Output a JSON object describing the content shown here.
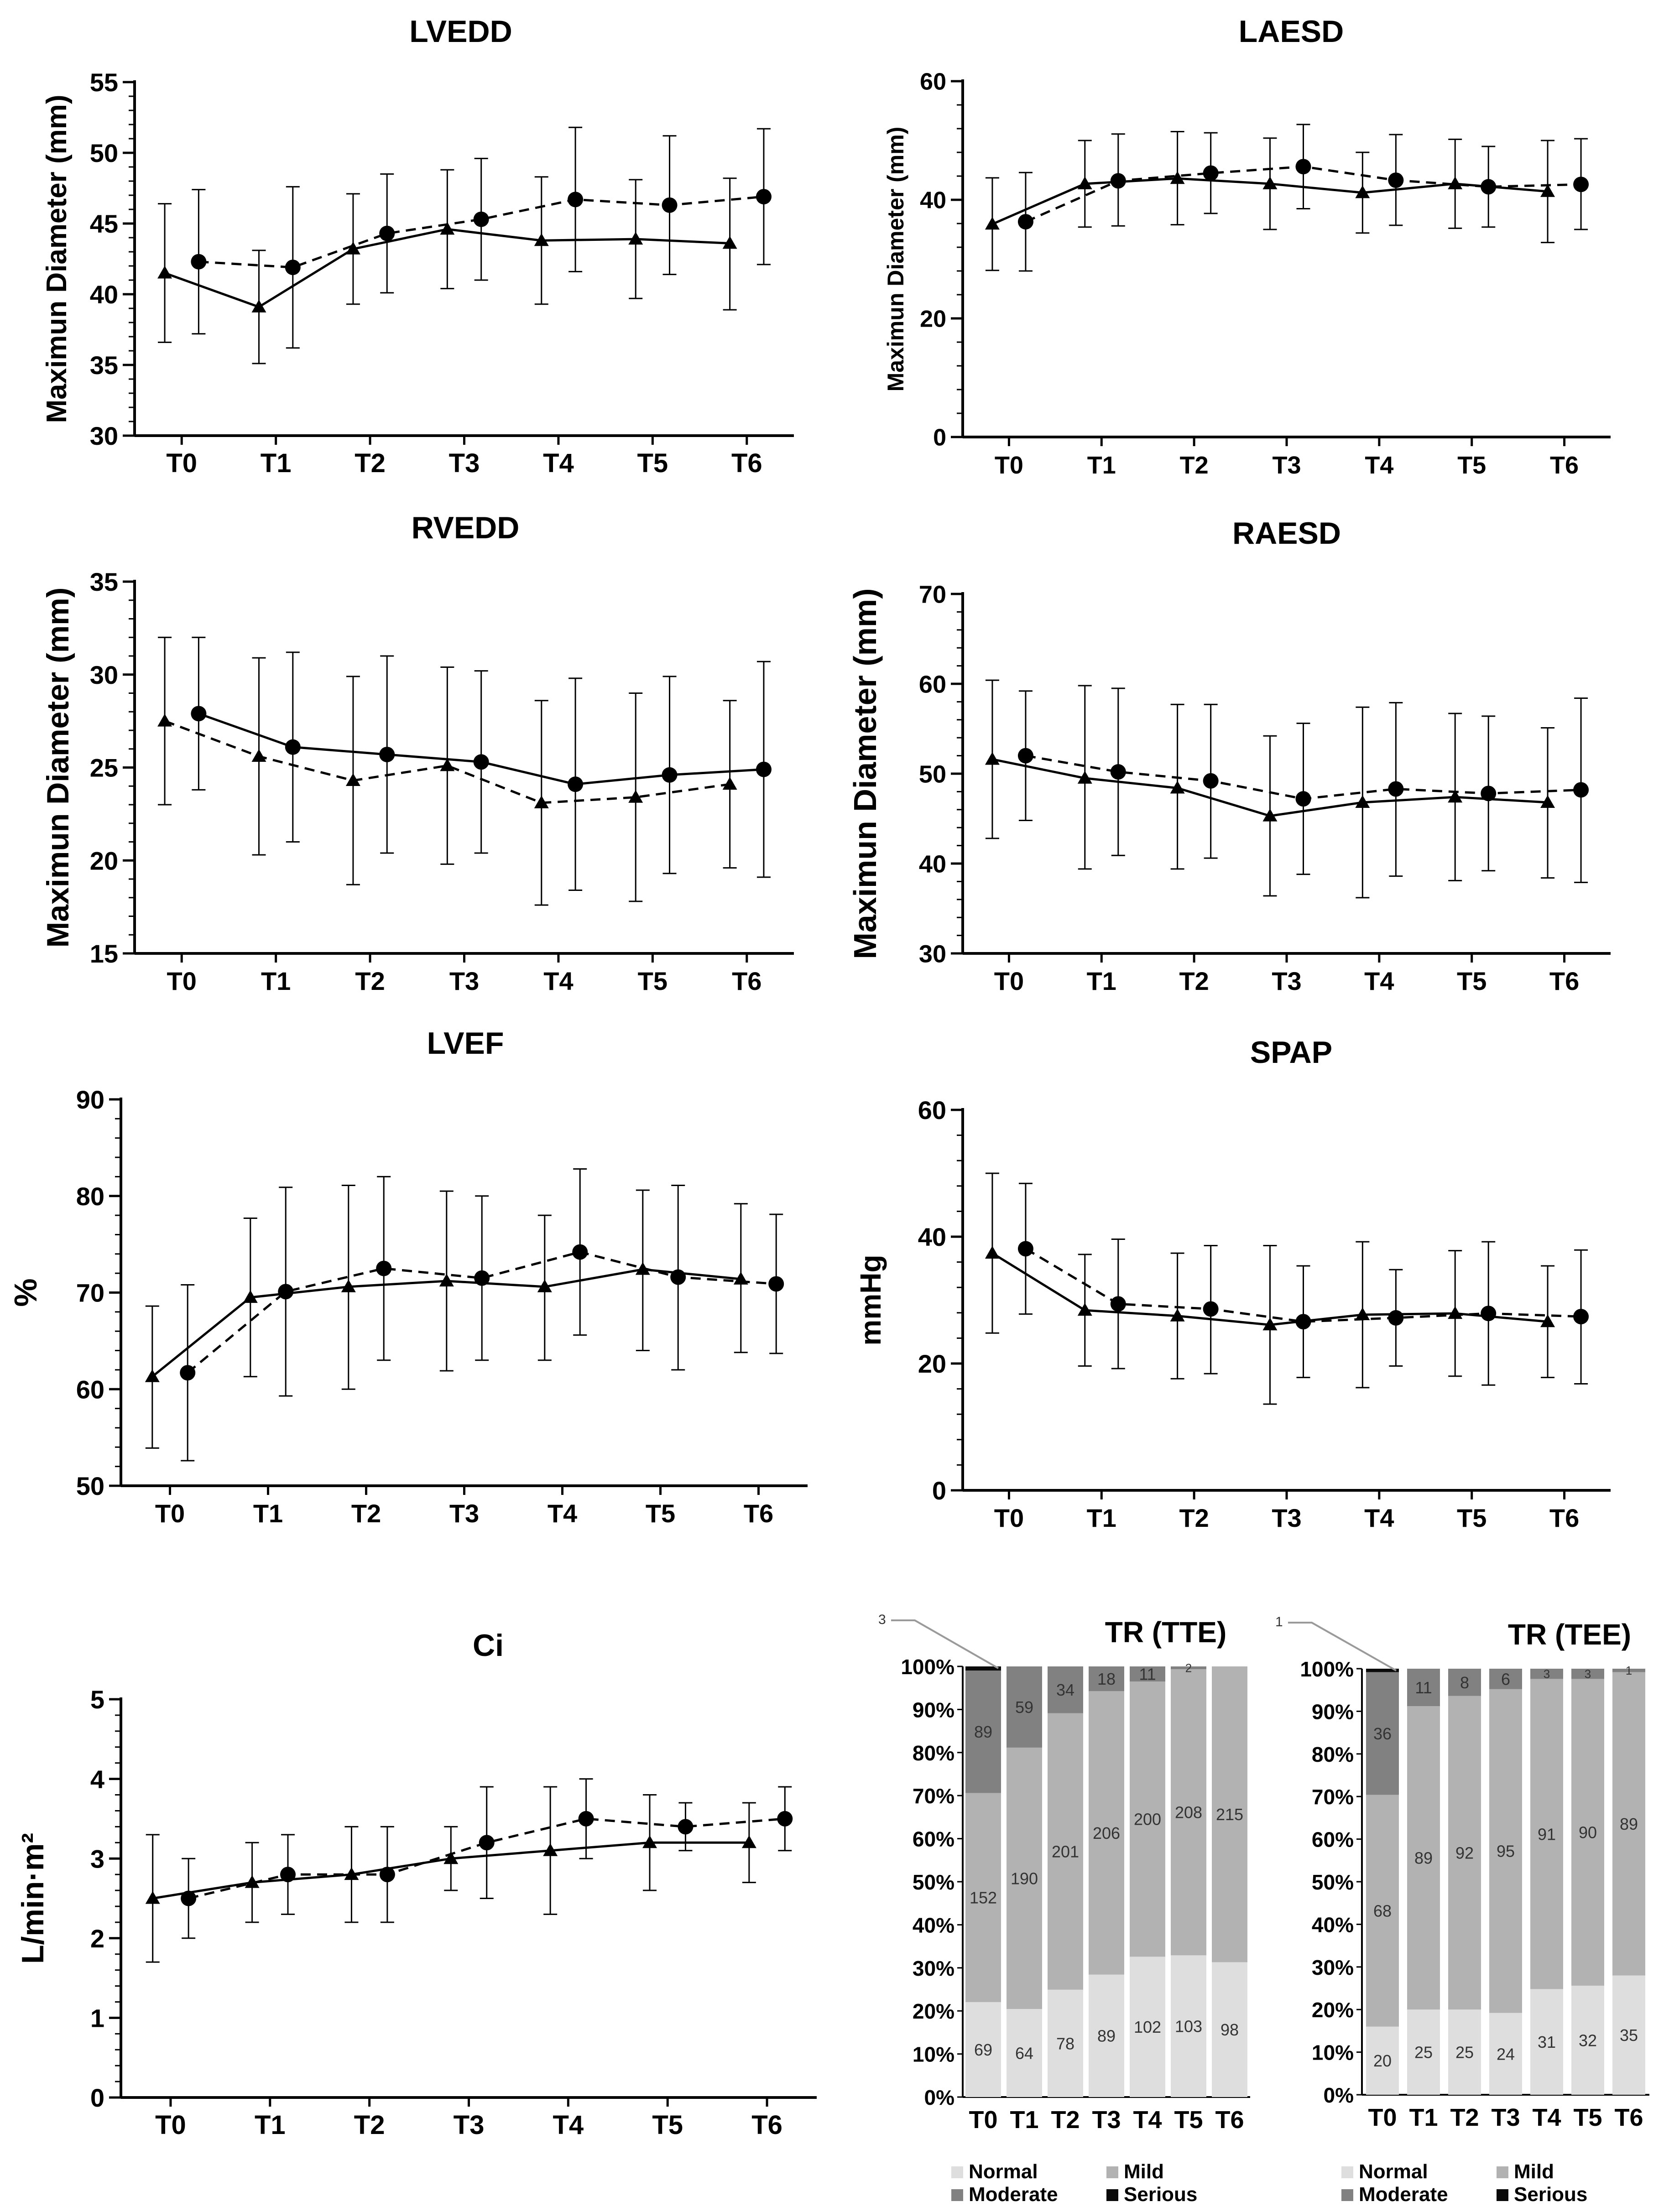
{
  "chart_data": [
    {
      "type": "line",
      "title": "LVEDD",
      "ylabel": "Maximun Diameter (mm)",
      "ylim": [
        30,
        55
      ],
      "yticks": [
        30,
        35,
        40,
        45,
        50,
        55
      ],
      "categories": [
        "T0",
        "T1",
        "T2",
        "T3",
        "T4",
        "T5",
        "T6"
      ],
      "series": [
        {
          "name": "triangle-solid",
          "marker": "triangle",
          "dash": "solid",
          "values": [
            41.5,
            39.1,
            43.2,
            44.6,
            43.8,
            43.9,
            43.6
          ],
          "err": [
            [
              36.6,
              46.4
            ],
            [
              35.1,
              43.1
            ],
            [
              39.3,
              47.1
            ],
            [
              40.4,
              48.8
            ],
            [
              39.3,
              48.3
            ],
            [
              39.7,
              48.1
            ],
            [
              38.9,
              48.2
            ]
          ]
        },
        {
          "name": "circle-dashed",
          "marker": "circle",
          "dash": "dashed",
          "values": [
            42.3,
            41.9,
            44.3,
            45.3,
            46.7,
            46.3,
            46.9
          ],
          "err": [
            [
              37.2,
              47.4
            ],
            [
              36.2,
              47.6
            ],
            [
              40.1,
              48.5
            ],
            [
              41.0,
              49.6
            ],
            [
              41.6,
              51.8
            ],
            [
              41.4,
              51.2
            ],
            [
              42.1,
              51.7
            ]
          ]
        }
      ]
    },
    {
      "type": "line",
      "title": "LAESD",
      "ylabel": "Maximun Diameter (mm)",
      "ylim": [
        0,
        60
      ],
      "yticks": [
        0,
        20,
        40,
        60
      ],
      "categories": [
        "T0",
        "T1",
        "T2",
        "T3",
        "T4",
        "T5",
        "T6"
      ],
      "series": [
        {
          "name": "triangle-solid",
          "marker": "triangle",
          "dash": "solid",
          "values": [
            35.9,
            42.7,
            43.6,
            42.7,
            41.2,
            42.7,
            41.4
          ],
          "err": [
            [
              28.1,
              43.7
            ],
            [
              35.4,
              50.0
            ],
            [
              35.8,
              51.5
            ],
            [
              35.0,
              50.4
            ],
            [
              34.4,
              48.0
            ],
            [
              35.2,
              50.2
            ],
            [
              32.8,
              50.0
            ]
          ]
        },
        {
          "name": "circle-dashed",
          "marker": "circle",
          "dash": "dashed",
          "values": [
            36.3,
            43.2,
            44.5,
            45.6,
            43.3,
            42.2,
            42.6
          ],
          "err": [
            [
              28.0,
              44.6
            ],
            [
              35.6,
              51.1
            ],
            [
              37.7,
              51.3
            ],
            [
              38.5,
              52.7
            ],
            [
              35.7,
              51.0
            ],
            [
              35.4,
              49.0
            ],
            [
              35.0,
              50.3
            ]
          ]
        }
      ]
    },
    {
      "type": "line",
      "title": "RVEDD",
      "ylabel": "Maximun Diameter (mm)",
      "ylim": [
        15,
        35
      ],
      "yticks": [
        15,
        20,
        25,
        30,
        35
      ],
      "categories": [
        "T0",
        "T1",
        "T2",
        "T3",
        "T4",
        "T5",
        "T6"
      ],
      "series": [
        {
          "name": "triangle-dashed",
          "marker": "triangle",
          "dash": "dashed",
          "values": [
            27.5,
            25.6,
            24.3,
            25.1,
            23.1,
            23.4,
            24.1
          ],
          "err": [
            [
              23.0,
              32.0
            ],
            [
              20.3,
              30.9
            ],
            [
              18.7,
              29.9
            ],
            [
              19.8,
              30.4
            ],
            [
              17.6,
              28.6
            ],
            [
              17.8,
              29.0
            ],
            [
              19.6,
              28.6
            ]
          ]
        },
        {
          "name": "circle-solid",
          "marker": "circle",
          "dash": "solid",
          "values": [
            27.9,
            26.1,
            25.7,
            25.3,
            24.1,
            24.6,
            24.9
          ],
          "err": [
            [
              23.8,
              32.0
            ],
            [
              21.0,
              31.2
            ],
            [
              20.4,
              31.0
            ],
            [
              20.4,
              30.2
            ],
            [
              18.4,
              29.8
            ],
            [
              19.3,
              29.9
            ],
            [
              19.1,
              30.7
            ]
          ]
        }
      ]
    },
    {
      "type": "line",
      "title": "RAESD",
      "ylabel": "Maximun Diameter (mm)",
      "ylim": [
        30,
        70
      ],
      "yticks": [
        30,
        40,
        50,
        60,
        70
      ],
      "categories": [
        "T0",
        "T1",
        "T2",
        "T3",
        "T4",
        "T5",
        "T6"
      ],
      "series": [
        {
          "name": "triangle-solid",
          "marker": "triangle",
          "dash": "solid",
          "values": [
            51.6,
            49.5,
            48.4,
            45.3,
            46.8,
            47.4,
            46.8
          ],
          "err": [
            [
              42.8,
              60.4
            ],
            [
              39.4,
              59.8
            ],
            [
              39.4,
              57.7
            ],
            [
              36.4,
              54.2
            ],
            [
              36.2,
              57.4
            ],
            [
              38.1,
              56.7
            ],
            [
              38.4,
              55.1
            ]
          ]
        },
        {
          "name": "circle-dashed",
          "marker": "circle",
          "dash": "dashed",
          "values": [
            52.0,
            50.2,
            49.2,
            47.2,
            48.3,
            47.8,
            48.2
          ],
          "err": [
            [
              44.8,
              59.2
            ],
            [
              40.9,
              59.5
            ],
            [
              40.6,
              57.7
            ],
            [
              38.8,
              55.6
            ],
            [
              38.6,
              57.9
            ],
            [
              39.2,
              56.4
            ],
            [
              37.9,
              58.4
            ]
          ]
        }
      ]
    },
    {
      "type": "line",
      "title": "LVEF",
      "ylabel": "%",
      "ylim": [
        50,
        90
      ],
      "yticks": [
        50,
        60,
        70,
        80,
        90
      ],
      "categories": [
        "T0",
        "T1",
        "T2",
        "T3",
        "T4",
        "T5",
        "T6"
      ],
      "series": [
        {
          "name": "triangle-solid",
          "marker": "triangle",
          "dash": "solid",
          "values": [
            61.3,
            69.5,
            70.6,
            71.2,
            70.6,
            72.4,
            71.4
          ],
          "err": [
            [
              53.9,
              68.6
            ],
            [
              61.3,
              77.7
            ],
            [
              60.0,
              81.1
            ],
            [
              61.9,
              80.5
            ],
            [
              63.0,
              78.0
            ],
            [
              64.0,
              80.6
            ],
            [
              63.8,
              79.2
            ]
          ]
        },
        {
          "name": "circle-dashed",
          "marker": "circle",
          "dash": "dashed",
          "values": [
            61.7,
            70.1,
            72.5,
            71.5,
            74.2,
            71.6,
            70.9
          ],
          "err": [
            [
              52.6,
              70.8
            ],
            [
              59.3,
              80.9
            ],
            [
              63.0,
              82.0
            ],
            [
              63.0,
              80.0
            ],
            [
              65.6,
              82.8
            ],
            [
              62.0,
              81.1
            ],
            [
              63.7,
              78.1
            ]
          ]
        }
      ]
    },
    {
      "type": "line",
      "title": "SPAP",
      "ylabel": "mmHg",
      "ylim": [
        0,
        60
      ],
      "yticks": [
        0,
        20,
        40,
        60
      ],
      "categories": [
        "T0",
        "T1",
        "T2",
        "T3",
        "T4",
        "T5",
        "T6"
      ],
      "series": [
        {
          "name": "triangle-solid",
          "marker": "triangle",
          "dash": "solid",
          "values": [
            37.4,
            28.4,
            27.5,
            26.1,
            27.7,
            27.9,
            26.6
          ],
          "err": [
            [
              24.8,
              50.0
            ],
            [
              19.6,
              37.2
            ],
            [
              17.6,
              37.4
            ],
            [
              13.6,
              38.6
            ],
            [
              16.2,
              39.2
            ],
            [
              18.0,
              37.8
            ],
            [
              17.8,
              35.4
            ]
          ]
        },
        {
          "name": "circle-dashed",
          "marker": "circle",
          "dash": "dashed",
          "values": [
            38.1,
            29.4,
            28.6,
            26.6,
            27.2,
            27.9,
            27.4
          ],
          "err": [
            [
              27.8,
              48.4
            ],
            [
              19.2,
              39.6
            ],
            [
              18.4,
              38.6
            ],
            [
              17.8,
              35.4
            ],
            [
              19.6,
              34.8
            ],
            [
              16.6,
              39.2
            ],
            [
              16.8,
              37.9
            ]
          ]
        }
      ]
    },
    {
      "type": "line",
      "title": "Ci",
      "ylabel": "L/min·m²",
      "ylim": [
        0,
        5
      ],
      "yticks": [
        0,
        1,
        2,
        3,
        4,
        5
      ],
      "categories": [
        "T0",
        "T1",
        "T2",
        "T3",
        "T4",
        "T5",
        "T6"
      ],
      "series": [
        {
          "name": "triangle-solid",
          "marker": "triangle",
          "dash": "solid",
          "values": [
            2.5,
            2.7,
            2.8,
            3.0,
            3.1,
            3.2,
            3.2
          ],
          "err": [
            [
              1.7,
              3.3
            ],
            [
              2.2,
              3.2
            ],
            [
              2.2,
              3.4
            ],
            [
              2.6,
              3.4
            ],
            [
              2.3,
              3.9
            ],
            [
              2.6,
              3.8
            ],
            [
              2.7,
              3.7
            ]
          ]
        },
        {
          "name": "circle-dashed",
          "marker": "circle",
          "dash": "dashed",
          "values": [
            2.5,
            2.8,
            2.8,
            3.2,
            3.5,
            3.4,
            3.5
          ],
          "err": [
            [
              2.0,
              3.0
            ],
            [
              2.3,
              3.3
            ],
            [
              2.2,
              3.4
            ],
            [
              2.5,
              3.9
            ],
            [
              3.0,
              4.0
            ],
            [
              3.1,
              3.7
            ],
            [
              3.1,
              3.9
            ]
          ]
        }
      ]
    },
    {
      "type": "bar",
      "stacked": "percent",
      "title": "TR (TTE)",
      "categories": [
        "T0",
        "T1",
        "T2",
        "T3",
        "T4",
        "T5",
        "T6"
      ],
      "yticks": [
        "0%",
        "10%",
        "20%",
        "30%",
        "40%",
        "50%",
        "60%",
        "70%",
        "80%",
        "90%",
        "100%"
      ],
      "callout": "3",
      "series": [
        {
          "name": "Normal",
          "values": [
            69,
            64,
            78,
            89,
            102,
            103,
            98
          ]
        },
        {
          "name": "Mild",
          "values": [
            152,
            190,
            201,
            206,
            200,
            208,
            215
          ]
        },
        {
          "name": "Moderate",
          "values": [
            89,
            59,
            34,
            18,
            11,
            2,
            0
          ]
        },
        {
          "name": "Serious",
          "values": [
            3,
            0,
            0,
            0,
            0,
            0,
            0
          ]
        }
      ],
      "legend": [
        "Normal",
        "Mild",
        "Moderate",
        "Serious"
      ]
    },
    {
      "type": "bar",
      "stacked": "percent",
      "title": "TR (TEE)",
      "categories": [
        "T0",
        "T1",
        "T2",
        "T3",
        "T4",
        "T5",
        "T6"
      ],
      "yticks": [
        "0%",
        "10%",
        "20%",
        "30%",
        "40%",
        "50%",
        "60%",
        "70%",
        "80%",
        "90%",
        "100%"
      ],
      "callout": "1",
      "series": [
        {
          "name": "Normal",
          "values": [
            20,
            25,
            25,
            24,
            31,
            32,
            35
          ]
        },
        {
          "name": "Mild",
          "values": [
            68,
            89,
            92,
            95,
            91,
            90,
            89
          ]
        },
        {
          "name": "Moderate",
          "values": [
            36,
            11,
            8,
            6,
            3,
            3,
            1
          ]
        },
        {
          "name": "Serious",
          "values": [
            1,
            0,
            0,
            0,
            0,
            0,
            0
          ]
        }
      ],
      "legend": [
        "Normal",
        "Mild",
        "Moderate",
        "Serious"
      ]
    }
  ],
  "colors": {
    "axis": "#000000",
    "normal": "#dedede",
    "mild": "#b2b2b2",
    "moderate": "#818181",
    "serious": "#0a0a0a",
    "label": "#333333"
  }
}
